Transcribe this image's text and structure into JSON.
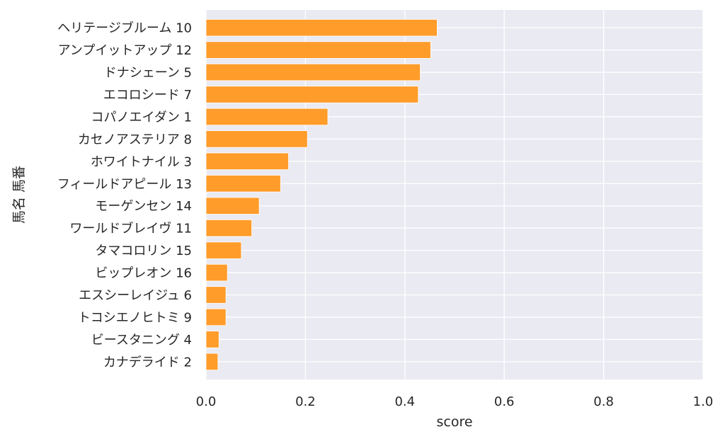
{
  "chart_data": {
    "type": "bar",
    "orientation": "horizontal",
    "categories": [
      "ヘリテージブルーム 10",
      "アンプイットアップ 12",
      "ドナシェーン 5",
      "エコロシード 7",
      "コパノエイダン 1",
      "カセノアステリア 8",
      "ホワイトナイル 3",
      "フィールドアピール 13",
      "モーゲンセン 14",
      "ワールドブレイヴ 11",
      "タマコロリン 15",
      "ビップレオン 16",
      "エスシーレイジュ 6",
      "トコシエノヒトミ 9",
      "ビースタニング 4",
      "カナデライド 2"
    ],
    "values": [
      0.465,
      0.452,
      0.431,
      0.427,
      0.245,
      0.204,
      0.166,
      0.15,
      0.107,
      0.092,
      0.071,
      0.043,
      0.04,
      0.04,
      0.026,
      0.024
    ],
    "xlabel": "score",
    "ylabel": "馬名 馬番",
    "xlim": [
      0.0,
      1.0
    ],
    "xticks": [
      "0.0",
      "0.2",
      "0.4",
      "0.6",
      "0.8",
      "1.0"
    ],
    "grid": true,
    "colors": {
      "bar": "#ff9c2a",
      "background": "#eaeaf2",
      "grid": "#ffffff"
    }
  }
}
